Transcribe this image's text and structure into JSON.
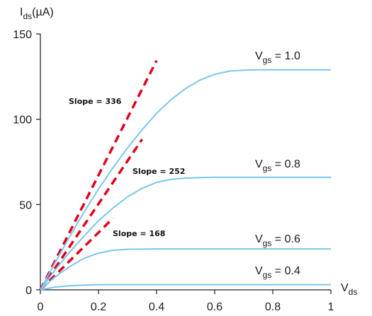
{
  "chart_data": {
    "type": "line",
    "ylabel": {
      "main": "I",
      "sub": "ds",
      "unit": "(µA)"
    },
    "xlabel": {
      "main": "V",
      "sub": "ds"
    },
    "xlim": [
      0,
      1
    ],
    "ylim": [
      0,
      150
    ],
    "x_ticks": [
      "0",
      "0.2",
      "0.4",
      "0.6",
      "0.8",
      "1"
    ],
    "y_ticks": [
      "0",
      "50",
      "100",
      "150"
    ],
    "series_color": "#79c7ec",
    "slope_color": "#e3001b",
    "series": [
      {
        "label_main": "V",
        "label_sub": "gs",
        "label_value": " = 1.0",
        "x": [
          0,
          0.05,
          0.1,
          0.15,
          0.2,
          0.25,
          0.3,
          0.35,
          0.4,
          0.45,
          0.5,
          0.55,
          0.6,
          0.65,
          0.7,
          0.75,
          0.8,
          0.9,
          1.0
        ],
        "y": [
          0,
          15.8,
          31,
          45.5,
          59,
          71.6,
          83.2,
          93.8,
          103.5,
          111.5,
          118,
          123,
          126.3,
          128.2,
          128.8,
          129,
          129,
          129,
          129
        ]
      },
      {
        "label_main": "V",
        "label_sub": "gs",
        "label_value": " = 0.8",
        "x": [
          0,
          0.05,
          0.1,
          0.15,
          0.2,
          0.25,
          0.3,
          0.35,
          0.4,
          0.45,
          0.5,
          0.55,
          0.6,
          0.7,
          0.8,
          0.9,
          1.0
        ],
        "y": [
          0,
          11.5,
          22,
          31.5,
          40.5,
          48,
          54.5,
          59.5,
          63,
          64.8,
          65.5,
          65.8,
          66,
          66,
          66,
          66,
          66
        ]
      },
      {
        "label_main": "V",
        "label_sub": "gs",
        "label_value": " = 0.6",
        "x": [
          0,
          0.05,
          0.1,
          0.15,
          0.2,
          0.25,
          0.3,
          0.4,
          0.6,
          0.8,
          1.0
        ],
        "y": [
          0,
          7.5,
          13.5,
          18.5,
          21.5,
          23.2,
          23.8,
          24,
          24,
          24,
          24
        ]
      },
      {
        "label_main": "V",
        "label_sub": "gs",
        "label_value": " = 0.4",
        "x": [
          0,
          0.05,
          0.1,
          0.15,
          0.2,
          0.4,
          0.6,
          0.8,
          1.0
        ],
        "y": [
          0,
          1.6,
          2.4,
          2.8,
          3,
          3,
          3,
          3,
          3
        ]
      }
    ],
    "slopes": [
      {
        "label": "Slope = 336",
        "slope": 336,
        "x_end": 0.4
      },
      {
        "label": "Slope = 252",
        "slope": 252,
        "x_end": 0.35
      },
      {
        "label": "Slope = 168",
        "slope": 168,
        "x_end": 0.25
      }
    ]
  }
}
